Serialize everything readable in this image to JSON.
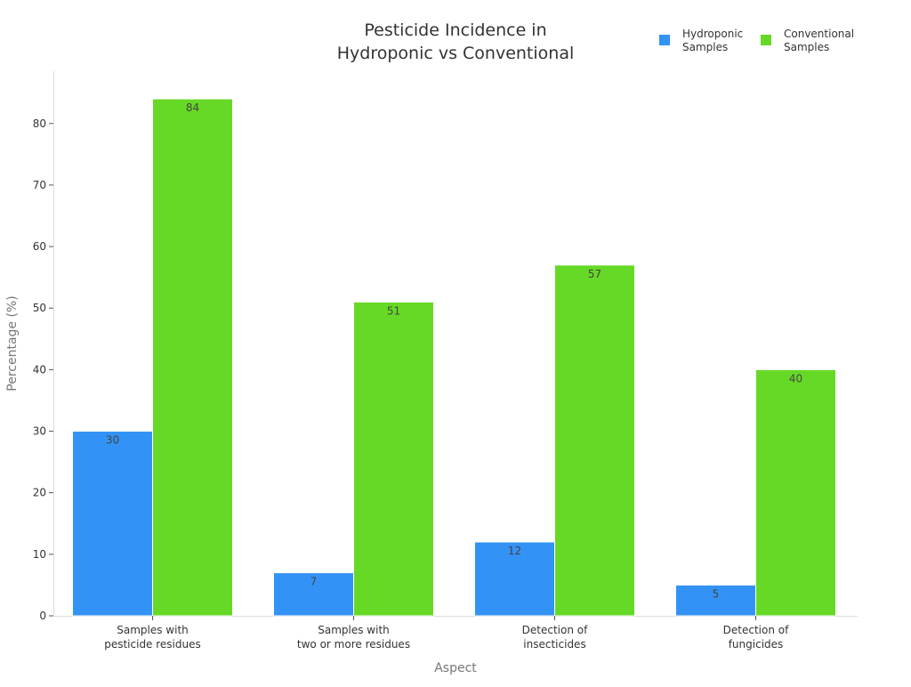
{
  "chart_data": {
    "type": "bar",
    "title_lines": [
      "Pesticide Incidence in",
      "Hydroponic vs Conventional"
    ],
    "xlabel": "Aspect",
    "ylabel": "Percentage (%)",
    "categories": [
      [
        "Samples with",
        "pesticide residues"
      ],
      [
        "Samples with",
        "two or more residues"
      ],
      [
        "Detection of",
        "insecticides"
      ],
      [
        "Detection of",
        "fungicides"
      ]
    ],
    "series": [
      {
        "name_lines": [
          "Hydroponic",
          "Samples"
        ],
        "color": "#3392f5",
        "values": [
          30,
          7,
          12,
          5
        ]
      },
      {
        "name_lines": [
          "Conventional",
          "Samples"
        ],
        "color": "#66d926",
        "values": [
          84,
          51,
          57,
          40
        ]
      }
    ],
    "ylim": [
      0,
      88.5
    ],
    "yticks": [
      0,
      10,
      20,
      30,
      40,
      50,
      60,
      70,
      80
    ],
    "grid": false,
    "legend_position": "top-right",
    "data_labels": true
  }
}
